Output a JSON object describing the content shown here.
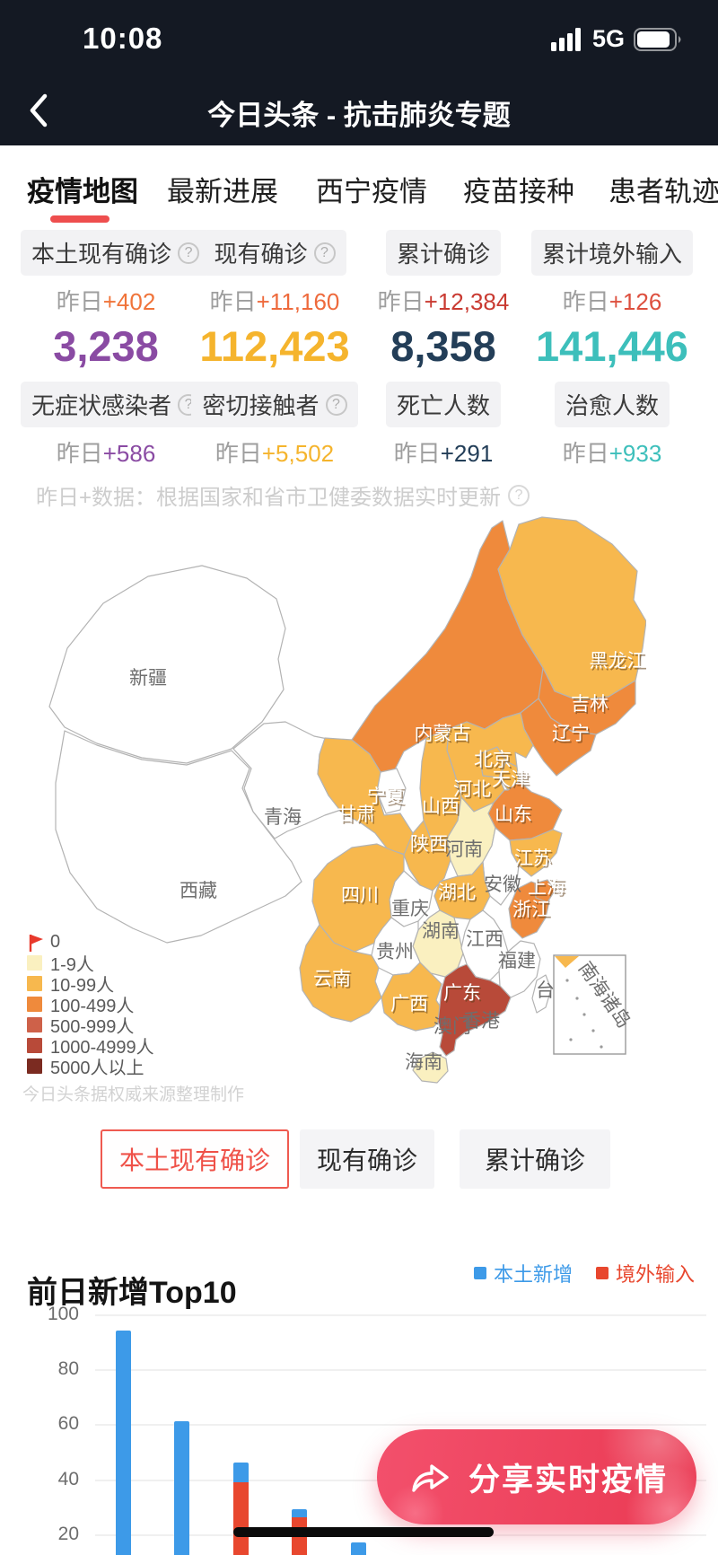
{
  "status_bar": {
    "time": "10:08",
    "network": "5G"
  },
  "nav": {
    "title": "今日头条 - 抗击肺炎专题"
  },
  "tabs": [
    {
      "label": "疫情地图",
      "active": true
    },
    {
      "label": "最新进展",
      "active": false
    },
    {
      "label": "西宁疫情",
      "active": false
    },
    {
      "label": "疫苗接种",
      "active": false
    },
    {
      "label": "患者轨迹",
      "active": false
    }
  ],
  "stats": {
    "row1": [
      {
        "label": "本土现有确诊",
        "has_help": true,
        "delta_prefix": "昨日",
        "delta": "+402",
        "delta_color": "#F0743A"
      },
      {
        "label": "现有确诊",
        "has_help": true,
        "delta_prefix": "昨日",
        "delta": "+11,160",
        "delta_color": "#EE6A3C"
      },
      {
        "label": "累计确诊",
        "has_help": false,
        "delta_prefix": "昨日",
        "delta": "+12,384",
        "delta_color": "#C93A31"
      },
      {
        "label": "累计境外输入",
        "has_help": false,
        "delta_prefix": "昨日",
        "delta": "+126",
        "delta_color": "#DD4F3E"
      }
    ],
    "row2": [
      {
        "label": "无症状感染者",
        "has_help": true,
        "value": "3,238",
        "value_color": "#8A4BA3",
        "delta_prefix": "昨日",
        "delta": "+586",
        "delta_color": "#8A4BA3"
      },
      {
        "label": "密切接触者",
        "has_help": true,
        "value": "112,423",
        "value_color": "#F5B42D",
        "delta_prefix": "昨日",
        "delta": "+5,502",
        "delta_color": "#F5B42D"
      },
      {
        "label": "死亡人数",
        "has_help": false,
        "value": "8,358",
        "value_color": "#233E58",
        "delta_prefix": "昨日",
        "delta": "+291",
        "delta_color": "#233E58"
      },
      {
        "label": "治愈人数",
        "has_help": false,
        "value": "141,446",
        "value_color": "#3DBFBB",
        "delta_prefix": "昨日",
        "delta": "+933",
        "delta_color": "#3DBFBB"
      }
    ],
    "note": "昨日+数据：根据国家和省市卫健委数据实时更新"
  },
  "map": {
    "watermark": "今日头条据权威来源整理制作",
    "inset_label": "南海诸岛",
    "level_colors": {
      "0": "#FFFFFF",
      "1-9": "#FAF0C0",
      "10-99": "#F7B84E",
      "100-499": "#EF8A3C",
      "500-999": "#CE6149",
      "1000-4999": "#B84A39",
      "5000+": "#7B2B21"
    },
    "legend": [
      {
        "label": "0",
        "swatch": "flag",
        "color": "#E8392C"
      },
      {
        "label": "1-9人",
        "swatch": "square",
        "color": "#FAF0C0"
      },
      {
        "label": "10-99人",
        "swatch": "square",
        "color": "#F7B84E"
      },
      {
        "label": "100-499人",
        "swatch": "square",
        "color": "#EF8A3C"
      },
      {
        "label": "500-999人",
        "swatch": "square",
        "color": "#CE6149"
      },
      {
        "label": "1000-4999人",
        "swatch": "square",
        "color": "#B84A39"
      },
      {
        "label": "5000人以上",
        "swatch": "square",
        "color": "#7B2B21"
      }
    ],
    "provinces": [
      {
        "id": "xinjiang",
        "name": "新疆",
        "level": "0"
      },
      {
        "id": "xizang",
        "name": "西藏",
        "level": "0"
      },
      {
        "id": "qinghai",
        "name": "青海",
        "level": "0"
      },
      {
        "id": "neimenggu",
        "name": "内蒙古",
        "level": "100-499"
      },
      {
        "id": "gansu",
        "name": "甘肃",
        "level": "10-99"
      },
      {
        "id": "heilongjiang",
        "name": "黑龙江",
        "level": "10-99"
      },
      {
        "id": "jilin",
        "name": "吉林",
        "level": "100-499"
      },
      {
        "id": "liaoning",
        "name": "辽宁",
        "level": "100-499"
      },
      {
        "id": "hebei",
        "name": "河北",
        "level": "10-99"
      },
      {
        "id": "beijing",
        "name": "北京",
        "level": "10-99"
      },
      {
        "id": "tianjin",
        "name": "天津",
        "level": "10-99"
      },
      {
        "id": "shanxi",
        "name": "山西",
        "level": "10-99"
      },
      {
        "id": "shandong",
        "name": "山东",
        "level": "100-499"
      },
      {
        "id": "ningxia",
        "name": "宁夏",
        "level": "0"
      },
      {
        "id": "shaanxi",
        "name": "陕西",
        "level": "10-99"
      },
      {
        "id": "henan",
        "name": "河南",
        "level": "1-9"
      },
      {
        "id": "jiangsu",
        "name": "江苏",
        "level": "10-99"
      },
      {
        "id": "anhui",
        "name": "安徽",
        "level": "0"
      },
      {
        "id": "hubei",
        "name": "湖北",
        "level": "10-99"
      },
      {
        "id": "chongqing",
        "name": "重庆",
        "level": "0"
      },
      {
        "id": "sichuan",
        "name": "四川",
        "level": "10-99"
      },
      {
        "id": "hunan",
        "name": "湖南",
        "level": "1-9"
      },
      {
        "id": "guizhou",
        "name": "贵州",
        "level": "0"
      },
      {
        "id": "jiangxi",
        "name": "江西",
        "level": "0"
      },
      {
        "id": "zhejiang",
        "name": "浙江",
        "level": "100-499"
      },
      {
        "id": "shanghai",
        "name": "上海",
        "level": "100-499"
      },
      {
        "id": "fujian",
        "name": "福建",
        "level": "0"
      },
      {
        "id": "yunnan",
        "name": "云南",
        "level": "10-99"
      },
      {
        "id": "guangxi",
        "name": "广西",
        "level": "10-99"
      },
      {
        "id": "guangdong",
        "name": "广东",
        "level": "1000-4999"
      },
      {
        "id": "hainan",
        "name": "海南",
        "level": "1-9"
      },
      {
        "id": "taiwan",
        "name": "台湾",
        "level": "0"
      },
      {
        "id": "aomen",
        "name": "澳门",
        "level": null
      },
      {
        "id": "xianggang",
        "name": "香港",
        "level": null
      }
    ]
  },
  "filter_buttons": [
    {
      "label": "本土现有确诊",
      "active": true
    },
    {
      "label": "现有确诊",
      "active": false
    },
    {
      "label": "累计确诊",
      "active": false
    }
  ],
  "chart_data": {
    "type": "bar",
    "stacked": true,
    "title": "前日新增Top10",
    "legend": [
      {
        "name": "本土新增",
        "color": "#3D9AE8"
      },
      {
        "name": "境外输入",
        "color": "#E8472E"
      }
    ],
    "y_ticks": [
      100,
      80,
      60,
      40,
      20
    ],
    "ylim": [
      0,
      100
    ],
    "grid": true,
    "categories": [],
    "categories_cut_off": true,
    "bars": [
      {
        "local": 94,
        "imported": 0
      },
      {
        "local": 61,
        "imported": 0
      },
      {
        "local": 7,
        "imported": 39
      },
      {
        "local": 3,
        "imported": 26
      },
      {
        "local": 17,
        "imported": 0
      }
    ]
  },
  "share": {
    "label": "分享实时疫情"
  }
}
